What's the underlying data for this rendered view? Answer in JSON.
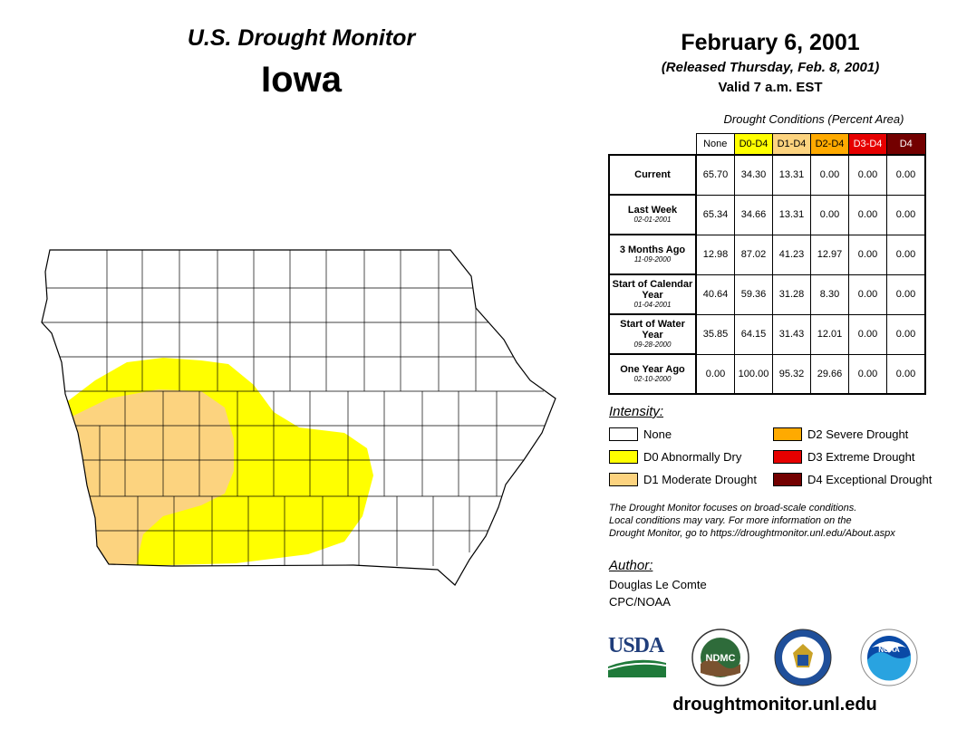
{
  "header": {
    "product": "U.S. Drought Monitor",
    "state": "Iowa",
    "date": "February 6, 2001",
    "released": "(Released Thursday, Feb. 8, 2001)",
    "valid": "Valid 7 a.m. EST"
  },
  "conditions": {
    "caption": "Drought Conditions (Percent Area)",
    "columns": [
      {
        "label": "None",
        "color": "#ffffff",
        "text_color": "#000000"
      },
      {
        "label": "D0-D4",
        "color": "#ffff00",
        "text_color": "#000000"
      },
      {
        "label": "D1-D4",
        "color": "#fcd37f",
        "text_color": "#000000"
      },
      {
        "label": "D2-D4",
        "color": "#ffaa00",
        "text_color": "#000000"
      },
      {
        "label": "D3-D4",
        "color": "#e60000",
        "text_color": "#ffffff"
      },
      {
        "label": "D4",
        "color": "#730000",
        "text_color": "#ffffff"
      }
    ],
    "rows": [
      {
        "label": "Current",
        "date": "",
        "values": [
          "65.70",
          "34.30",
          "13.31",
          "0.00",
          "0.00",
          "0.00"
        ]
      },
      {
        "label": "Last Week",
        "date": "02-01-2001",
        "values": [
          "65.34",
          "34.66",
          "13.31",
          "0.00",
          "0.00",
          "0.00"
        ]
      },
      {
        "label": "3 Months Ago",
        "date": "11-09-2000",
        "values": [
          "12.98",
          "87.02",
          "41.23",
          "12.97",
          "0.00",
          "0.00"
        ]
      },
      {
        "label": "Start of Calendar Year",
        "date": "01-04-2001",
        "values": [
          "40.64",
          "59.36",
          "31.28",
          "8.30",
          "0.00",
          "0.00"
        ]
      },
      {
        "label": "Start of Water Year",
        "date": "09-28-2000",
        "values": [
          "35.85",
          "64.15",
          "31.43",
          "12.01",
          "0.00",
          "0.00"
        ]
      },
      {
        "label": "One Year Ago",
        "date": "02-10-2000",
        "values": [
          "0.00",
          "100.00",
          "95.32",
          "29.66",
          "0.00",
          "0.00"
        ]
      }
    ]
  },
  "legend": {
    "title": "Intensity:",
    "items": [
      {
        "label": "None",
        "color": "#ffffff"
      },
      {
        "label": "D0 Abnormally Dry",
        "color": "#ffff00"
      },
      {
        "label": "D1 Moderate Drought",
        "color": "#fcd37f"
      },
      {
        "label": "D2 Severe Drought",
        "color": "#ffaa00"
      },
      {
        "label": "D3 Extreme Drought",
        "color": "#e60000"
      },
      {
        "label": "D4 Exceptional Drought",
        "color": "#730000"
      }
    ]
  },
  "note": {
    "line1": "The Drought Monitor focuses on broad-scale conditions.",
    "line2": "Local conditions may vary. For more information on the",
    "line3": "Drought Monitor, go to https://droughtmonitor.unl.edu/About.aspx"
  },
  "author": {
    "label": "Author:",
    "name": "Douglas Le Comte",
    "org": "CPC/NOAA"
  },
  "logos": {
    "usda": "USDA",
    "ndmc": "NDMC",
    "noaa": "NOAA"
  },
  "footer": {
    "url": "droughtmonitor.unl.edu"
  }
}
